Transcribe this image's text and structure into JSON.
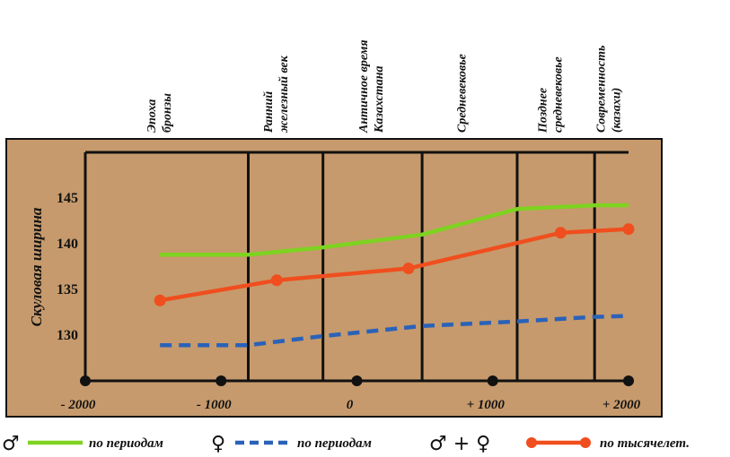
{
  "chart_data": {
    "type": "line",
    "ylabel": "Скуловая ширина",
    "xlabel": "",
    "ylim": [
      125,
      150
    ],
    "xlim": [
      -2000,
      2080
    ],
    "y_ticks": [
      "145",
      "140",
      "135",
      "130"
    ],
    "x_ticks": [
      {
        "value": -2000,
        "label": "- 2000"
      },
      {
        "value": -1000,
        "label": "- 1000"
      },
      {
        "value": 0,
        "label": "0"
      },
      {
        "value": 1000,
        "label": "+ 1000"
      },
      {
        "value": 2000,
        "label": "+ 2000"
      }
    ],
    "periods": [
      {
        "lines": [
          "Эпоха",
          "бронзы"
        ]
      },
      {
        "lines": [
          "Ранний",
          "железный век"
        ]
      },
      {
        "lines": [
          "Античное время",
          "Казахстана"
        ]
      },
      {
        "lines": [
          "Средневековье"
        ]
      },
      {
        "lines": [
          "Позднее",
          "средневековье"
        ]
      },
      {
        "lines": [
          "Современность",
          "(казахи)"
        ]
      }
    ],
    "period_boundaries": [
      -800,
      -250,
      480,
      1180,
      1750
    ],
    "series": [
      {
        "name": "♂ по периодам",
        "color": "#7ed321",
        "style": "solid",
        "points": [
          {
            "x": -1450,
            "y": 138.8
          },
          {
            "x": -800,
            "y": 138.8
          },
          {
            "x": -250,
            "y": 139.6
          },
          {
            "x": 480,
            "y": 141.0
          },
          {
            "x": 1180,
            "y": 143.8
          },
          {
            "x": 1750,
            "y": 144.2
          },
          {
            "x": 2000,
            "y": 144.2
          }
        ]
      },
      {
        "name": "♀ по периодам",
        "color": "#2a62b8",
        "style": "dashed",
        "points": [
          {
            "x": -1450,
            "y": 128.9
          },
          {
            "x": -800,
            "y": 128.9
          },
          {
            "x": -250,
            "y": 129.9
          },
          {
            "x": 480,
            "y": 131.0
          },
          {
            "x": 1180,
            "y": 131.5
          },
          {
            "x": 1750,
            "y": 132.0
          },
          {
            "x": 2000,
            "y": 132.1
          }
        ]
      },
      {
        "name": "♂ + ♀ по тысячелет.",
        "color": "#f04e1e",
        "style": "solid-markers",
        "points": [
          {
            "x": -1450,
            "y": 133.8
          },
          {
            "x": -590,
            "y": 136.0
          },
          {
            "x": 380,
            "y": 137.3
          },
          {
            "x": 1500,
            "y": 141.2
          },
          {
            "x": 2000,
            "y": 141.6
          }
        ],
        "markers": true
      }
    ],
    "legend": {
      "placement": "bottom",
      "items": [
        {
          "symbol": "♂",
          "text": "по периодам",
          "series": 0
        },
        {
          "symbol": "♀",
          "text": "по периодам",
          "series": 1
        },
        {
          "symbol": "♂ + ♀",
          "text": "по тысячелет.",
          "series": 2
        }
      ]
    },
    "colors": {
      "plot_background": "#c69a6c",
      "frame": "#111111"
    }
  }
}
